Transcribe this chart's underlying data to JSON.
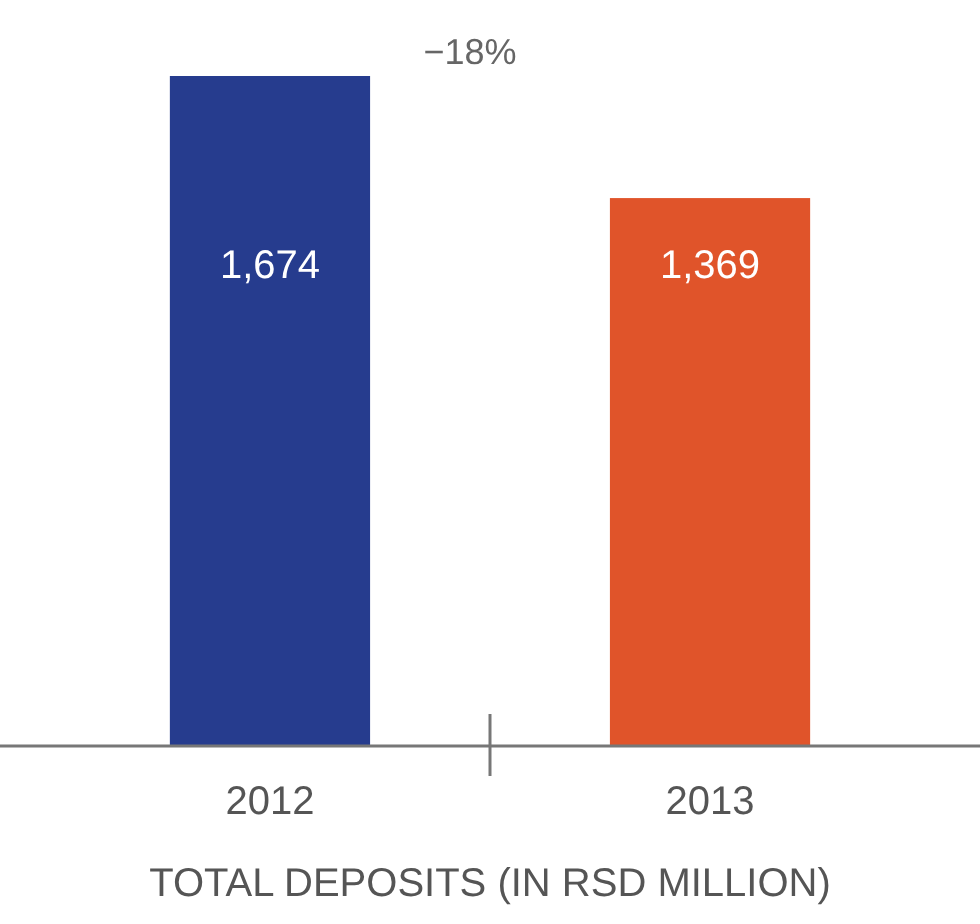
{
  "chart_data": {
    "type": "bar",
    "xlabel": "TOTAL DEPOSITS (IN RSD MILLION)",
    "categories": [
      "2012",
      "2013"
    ],
    "values": [
      1674,
      1369
    ],
    "colors": [
      "#263c8e",
      "#e0542a"
    ],
    "value_labels": [
      "1,674",
      "1,369"
    ],
    "annotations": [
      "−18%"
    ]
  }
}
